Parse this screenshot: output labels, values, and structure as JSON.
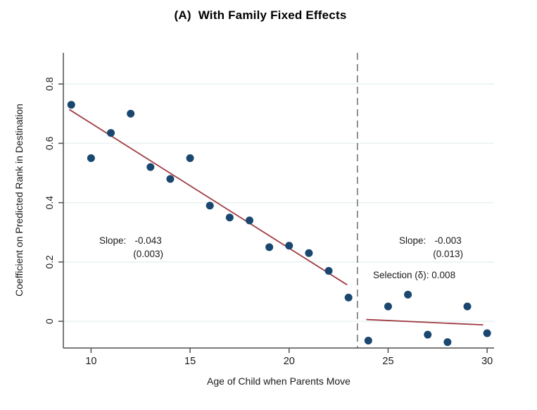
{
  "header": {
    "prefix": "(A)",
    "text": "With Family Fixed Effects"
  },
  "chart_data": {
    "type": "scatter",
    "title": "(A) With Family Fixed Effects",
    "xlabel": "Age of Child when Parents Move",
    "ylabel": "Coefficient on Predicted Rank in Destination",
    "xlim": [
      8.6,
      30.35
    ],
    "ylim": [
      -0.09,
      0.905
    ],
    "x_ticks": [
      10,
      15,
      20,
      25,
      30
    ],
    "x_tick_labels": [
      "10",
      "15",
      "20",
      "25",
      "30"
    ],
    "y_ticks": [
      0,
      0.2,
      0.4,
      0.6,
      0.8
    ],
    "y_tick_labels": [
      "0",
      "0.2",
      "0.4",
      "0.6",
      "0.8"
    ],
    "grid": "horizontal",
    "legend": "none",
    "points": {
      "x": [
        9,
        10,
        11,
        12,
        13,
        14,
        15,
        16,
        17,
        18,
        19,
        20,
        21,
        22,
        23,
        24,
        25,
        26,
        27,
        28,
        29,
        30
      ],
      "y": [
        0.73,
        0.55,
        0.635,
        0.7,
        0.52,
        0.48,
        0.55,
        0.39,
        0.35,
        0.34,
        0.25,
        0.255,
        0.23,
        0.17,
        0.08,
        -0.065,
        0.05,
        0.09,
        -0.045,
        -0.07,
        0.05,
        -0.04
      ]
    },
    "vline_x": 23.45,
    "fit_lines": [
      {
        "name": "below-age-23-fit",
        "x1": 8.9,
        "y1": 0.714,
        "x2": 22.93,
        "y2": 0.123
      },
      {
        "name": "above-age-23-fit",
        "x1": 23.9,
        "y1": 0.006,
        "x2": 29.8,
        "y2": -0.012
      }
    ],
    "annotations": {
      "left_slope": {
        "label": "Slope:",
        "value": "-0.043",
        "se": "(0.003)"
      },
      "right_slope": {
        "label": "Slope:",
        "value": "-0.003",
        "se": "(0.013)"
      },
      "selection": {
        "text": "Selection (δ): 0.008"
      }
    },
    "colors": {
      "dot": "#1a476f",
      "fit_line": "#a03b42",
      "gridline": "#e7f1f0",
      "axis": "#4f4f4f",
      "dashed_line": "#6f6f6f",
      "text": "#1a1a1a"
    }
  }
}
